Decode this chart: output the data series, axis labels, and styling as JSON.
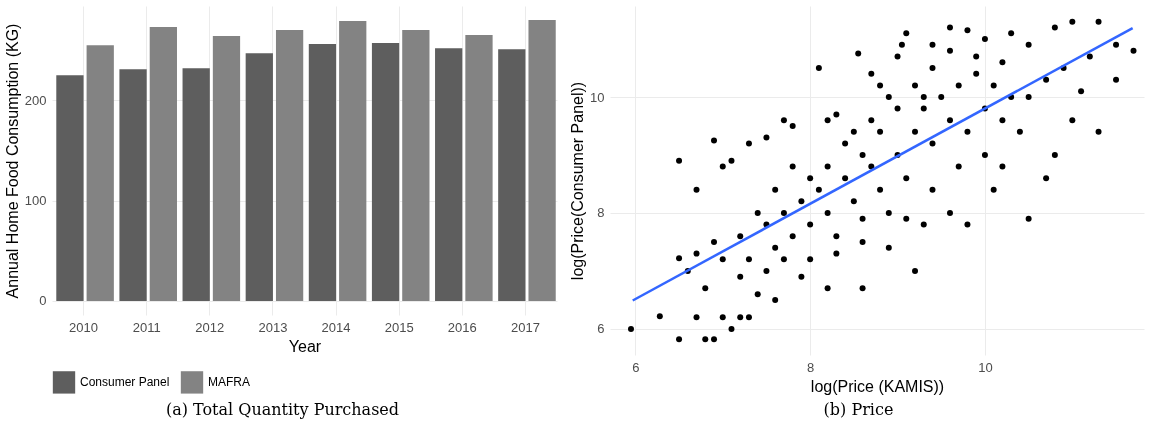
{
  "chart_data": [
    {
      "type": "bar",
      "xlabel": "Year",
      "ylabel": "Annual Home Food Consumption (KG)",
      "categories": [
        "2010",
        "2011",
        "2012",
        "2013",
        "2014",
        "2015",
        "2016",
        "2017"
      ],
      "series": [
        {
          "name": "Consumer Panel",
          "color": "#5e5e5e",
          "values": [
            225,
            231,
            232,
            247,
            256,
            257,
            252,
            251
          ]
        },
        {
          "name": "MAFRA",
          "color": "#838383",
          "values": [
            255,
            273,
            264,
            270,
            279,
            270,
            265,
            280
          ]
        }
      ],
      "ylim": [
        -14,
        294
      ],
      "yticks": [
        0,
        100,
        200
      ],
      "grid": true,
      "legend": "bottom",
      "annotations": [
        "(a) Total Quantity Purchased"
      ]
    },
    {
      "type": "scatter",
      "xlabel": "log(Price (KAMIS))",
      "ylabel": "log(Price(Consumer Panel))",
      "marker": "circle",
      "series": [
        {
          "color": "#000000",
          "x": [
            5.95,
            6.28,
            6.5,
            6.5,
            6.5,
            6.7,
            6.8,
            6.9,
            6.9,
            7.1,
            7.2,
            7.3,
            6.6,
            6.7,
            6.8,
            7.0,
            7.1,
            7.3,
            7.5,
            7.7,
            7.8,
            8.2,
            8.3,
            8.1,
            8.55,
            8.7,
            8.8,
            9.0,
            9.05,
            9.1,
            9.4,
            9.6,
            9.8,
            10.0,
            10.3,
            10.5,
            10.8,
            11.0,
            11.3,
            11.5,
            11.7,
            11.5,
            11.3,
            11.0,
            10.8,
            10.7,
            10.5,
            10.1,
            9.8,
            9.6,
            9.3,
            9.2,
            8.6,
            8.2,
            7.9,
            7.6,
            7.4,
            7.0,
            7.2,
            6.9,
            6.7,
            7.5,
            7.6,
            7.7,
            7.8,
            7.9,
            8.0,
            8.1,
            8.2,
            8.3,
            8.4,
            8.5,
            8.6,
            8.7,
            8.8,
            8.9,
            9.0,
            9.1,
            9.2,
            9.3,
            9.4,
            9.5,
            9.6,
            9.7,
            9.8,
            9.9,
            10.0,
            10.1,
            10.2,
            10.3,
            9.4,
            9.2,
            9.0,
            8.8,
            8.6,
            8.4,
            8.2,
            8.0,
            7.8,
            7.6,
            7.4,
            7.2,
            7.0,
            7.3,
            7.5,
            7.7,
            8.0,
            8.3,
            8.6,
            8.9,
            9.1,
            9.4,
            9.7,
            10.0,
            10.2,
            10.4,
            10.5,
            10.7,
            10.9,
            11.2,
            11.1,
            9.6,
            9.9,
            10.2,
            9.3,
            8.9,
            8.7,
            8.5
          ],
          "values": [
            6.0,
            6.22,
            5.82,
            7.22,
            8.9,
            8.4,
            5.82,
            5.82,
            9.25,
            6.0,
            6.2,
            6.2,
            7.0,
            6.2,
            6.7,
            8.8,
            8.9,
            9.2,
            9.3,
            9.6,
            9.5,
            9.6,
            9.7,
            10.5,
            10.75,
            10.4,
            10.2,
            10.7,
            10.9,
            11.1,
            10.9,
            11.2,
            11.15,
            11.0,
            11.1,
            10.9,
            11.2,
            11.3,
            11.3,
            10.9,
            10.8,
            10.3,
            9.4,
            9.6,
            9.0,
            8.6,
            7.9,
            8.4,
            7.8,
            8.0,
            7.8,
            7.0,
            6.7,
            6.7,
            6.9,
            6.5,
            6.6,
            6.2,
            6.9,
            7.5,
            7.3,
            7.8,
            7.4,
            8.0,
            7.6,
            8.2,
            7.8,
            8.4,
            8.0,
            7.6,
            8.6,
            8.2,
            7.9,
            8.8,
            8.4,
            8.0,
            9.0,
            8.6,
            9.4,
            9.8,
            9.2,
            10.0,
            9.6,
            10.2,
            9.4,
            10.4,
            9.8,
            10.2,
            9.6,
            10.0,
            10.5,
            10.2,
            9.8,
            9.4,
            9.0,
            9.2,
            8.8,
            8.6,
            8.8,
            8.4,
            8.0,
            7.6,
            7.2,
            7.2,
            7.0,
            7.2,
            7.2,
            7.3,
            7.5,
            7.4,
            7.9,
            8.4,
            8.8,
            9.0,
            8.8,
            9.4,
            10.0,
            10.3,
            10.5,
            10.7,
            10.1,
            10.8,
            10.7,
            10.6,
            10.0,
            10.0,
            9.6,
            9.4
          ]
        },
        {
          "type": "line",
          "marker": "none",
          "color": "#3366ff",
          "x": [
            5.97,
            11.69
          ],
          "values": [
            6.49,
            11.19
          ]
        }
      ],
      "xlim": [
        5.71,
        11.82
      ],
      "xticks": [
        6,
        8,
        10
      ],
      "ylim": [
        5.55,
        11.57
      ],
      "yticks": [
        6,
        8,
        10
      ],
      "grid": true,
      "annotations": [
        "(b) Price"
      ]
    }
  ]
}
